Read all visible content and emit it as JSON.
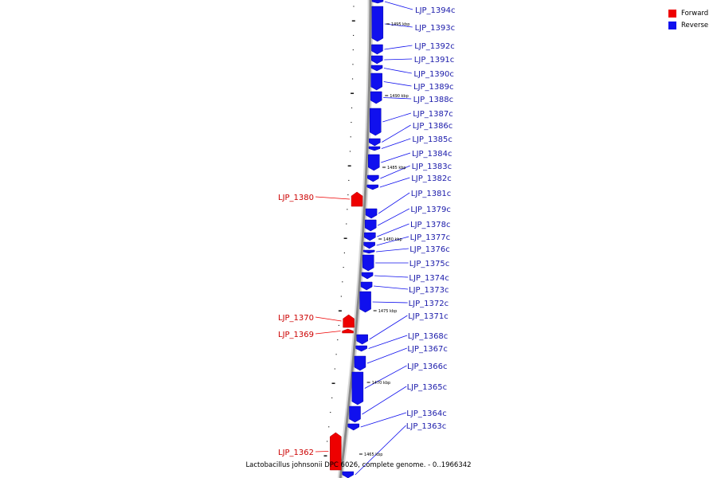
{
  "caption": "Lactobacillus johnsonii DPC 6026, complete genome. - 0..1966342",
  "legend": [
    {
      "label": "Forward",
      "color": "#ee0000"
    },
    {
      "label": "Reverse",
      "color": "#1010ee"
    }
  ],
  "colors": {
    "forward": "#ee0000",
    "reverse": "#1010ee",
    "backbone": "#888888",
    "text_forward": "#cc0000",
    "text_reverse": "#1a1aaa"
  },
  "kbp_marks": [
    "1495 kbp",
    "1490 kbp",
    "1485 kbp",
    "1480 kbp",
    "1475 kbp",
    "1470 kbp",
    "1465 kbp"
  ],
  "genes_reverse": [
    "LJP_1394c",
    "LJP_1393c",
    "LJP_1392c",
    "LJP_1391c",
    "LJP_1390c",
    "LJP_1389c",
    "LJP_1388c",
    "LJP_1387c",
    "LJP_1386c",
    "LJP_1385c",
    "LJP_1384c",
    "LJP_1383c",
    "LJP_1382c",
    "LJP_1381c",
    "LJP_1379c",
    "LJP_1378c",
    "LJP_1377c",
    "LJP_1376c",
    "LJP_1375c",
    "LJP_1374c",
    "LJP_1373c",
    "LJP_1372c",
    "LJP_1371c",
    "LJP_1368c",
    "LJP_1367c",
    "LJP_1366c",
    "LJP_1365c",
    "LJP_1364c",
    "LJP_1363c"
  ],
  "genes_forward": [
    "LJP_1380",
    "LJP_1370",
    "LJP_1369",
    "LJP_1362"
  ]
}
